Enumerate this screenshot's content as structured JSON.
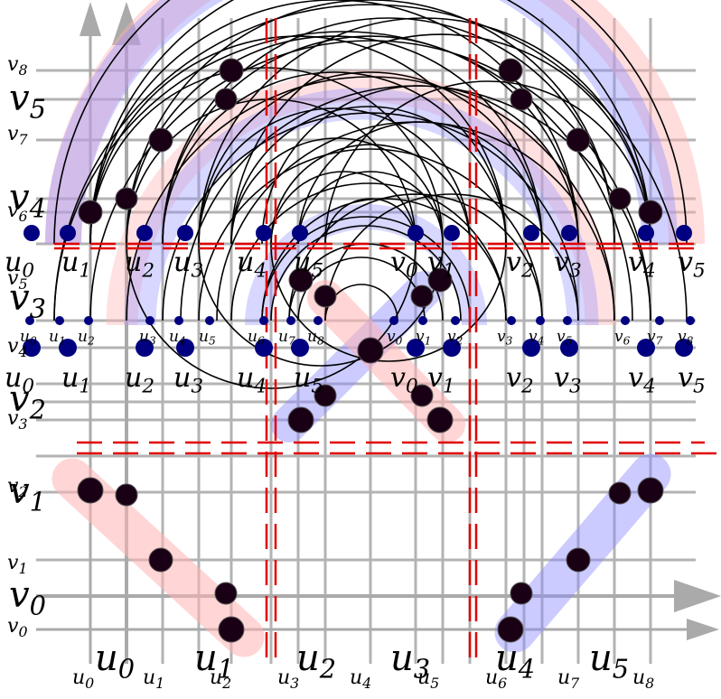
{
  "colors": {
    "grid": "#b3b3b3",
    "dashed": "#e00000",
    "red_band": "#ffb3b3",
    "blue_band": "#8c8cff",
    "dot_dark": "#000000",
    "dot_blue": "#000080",
    "arrow": "#aaaaaa"
  },
  "labels": {
    "bottom_small": [
      "u_0",
      "u_1",
      "u_2",
      "u_3",
      "u_4",
      "u_5",
      "u_6",
      "u_7",
      "u_8"
    ],
    "bottom_large": [
      "u_0",
      "u_1",
      "u_2",
      "u_3",
      "u_4",
      "u_5"
    ],
    "left_small": [
      "v_0",
      "v_1",
      "v_2",
      "v_3",
      "v_4",
      "v_5",
      "v_6",
      "v_7",
      "v_8"
    ],
    "left_large": [
      "v_0",
      "v_1",
      "v_2",
      "v_3",
      "v_4",
      "v_5"
    ],
    "mid_row_a": [
      "u_0",
      "u_1",
      "u_2",
      "u_3",
      "u_4",
      "u_5",
      "v_0",
      "v_1",
      "v_2",
      "v_3",
      "v_4",
      "v_5"
    ],
    "mid_row_b": [
      "u_0",
      "u_1",
      "u_2",
      "u_3",
      "u_4",
      "u_5",
      "v_0",
      "v_1",
      "v_2",
      "v_3",
      "v_4",
      "v_5"
    ],
    "tiny_row": [
      "u_0",
      "u_1",
      "u_2",
      "u_3",
      "u_4",
      "u_5",
      "u_6",
      "u_7",
      "u_8",
      "v_0",
      "v_1",
      "v_2",
      "v_3",
      "v_4",
      "v_5",
      "v_6",
      "v_7",
      "v_8"
    ]
  }
}
